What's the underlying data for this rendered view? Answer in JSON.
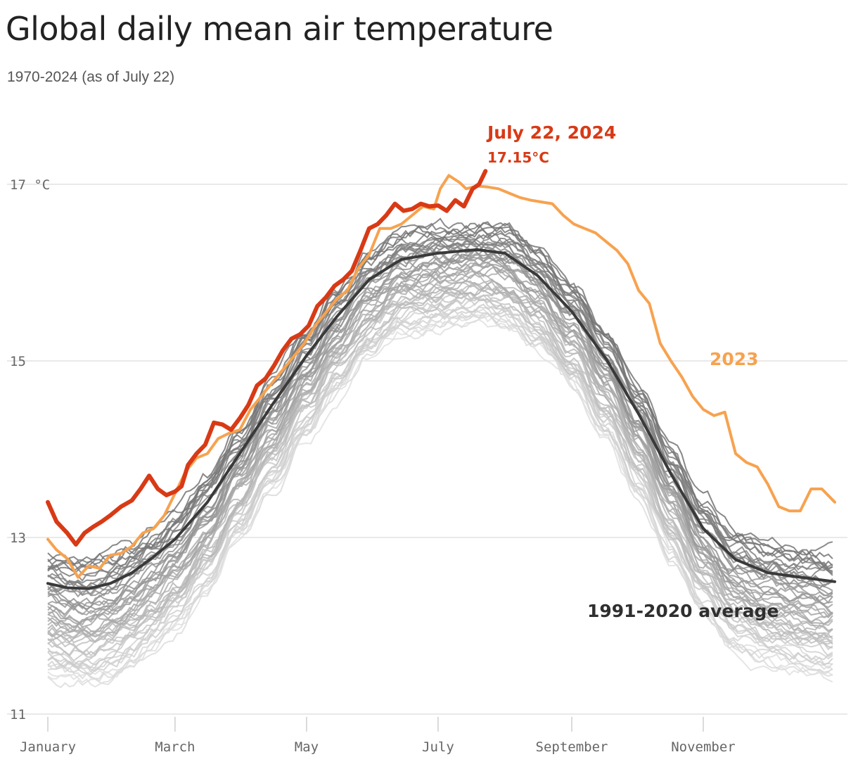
{
  "title": "Global daily mean air temperature",
  "subtitle": "1970-2024 (as of July 22)",
  "chart_data": {
    "type": "line",
    "title": "Global daily mean air temperature",
    "subtitle": "1970-2024 (as of July 22)",
    "y_unit": "°C",
    "ylim": [
      11,
      17.3
    ],
    "y_ticks": [
      {
        "value": 11,
        "label": "11"
      },
      {
        "value": 13,
        "label": "13"
      },
      {
        "value": 15,
        "label": "15"
      },
      {
        "value": 17,
        "label": "17 °C"
      }
    ],
    "x_ticks": [
      {
        "day": 1,
        "label": "January"
      },
      {
        "day": 60,
        "label": "March"
      },
      {
        "day": 121,
        "label": "May"
      },
      {
        "day": 182,
        "label": "July"
      },
      {
        "day": 244,
        "label": "September"
      },
      {
        "day": 305,
        "label": "November"
      }
    ],
    "xlim": [
      1,
      366
    ],
    "grid": "horizontal",
    "colors": {
      "y2024": "#d83a16",
      "y2023": "#f7a24f",
      "average": "#3a3a3a",
      "history": "#8a8a8a"
    },
    "series": [
      {
        "name": "1991-2020 average",
        "points": [
          [
            1,
            12.48
          ],
          [
            10,
            12.43
          ],
          [
            20,
            12.42
          ],
          [
            30,
            12.48
          ],
          [
            40,
            12.6
          ],
          [
            50,
            12.78
          ],
          [
            60,
            12.98
          ],
          [
            75,
            13.4
          ],
          [
            90,
            13.95
          ],
          [
            105,
            14.5
          ],
          [
            121,
            15.06
          ],
          [
            135,
            15.5
          ],
          [
            150,
            15.92
          ],
          [
            165,
            16.15
          ],
          [
            182,
            16.22
          ],
          [
            200,
            16.26
          ],
          [
            213,
            16.22
          ],
          [
            228,
            15.97
          ],
          [
            244,
            15.56
          ],
          [
            260,
            15.02
          ],
          [
            275,
            14.4
          ],
          [
            290,
            13.72
          ],
          [
            305,
            13.1
          ],
          [
            320,
            12.75
          ],
          [
            335,
            12.6
          ],
          [
            350,
            12.55
          ],
          [
            366,
            12.5
          ]
        ]
      },
      {
        "name": "2023",
        "points": [
          [
            1,
            12.98
          ],
          [
            5,
            12.86
          ],
          [
            10,
            12.76
          ],
          [
            15,
            12.55
          ],
          [
            20,
            12.68
          ],
          [
            25,
            12.65
          ],
          [
            30,
            12.8
          ],
          [
            35,
            12.82
          ],
          [
            40,
            12.9
          ],
          [
            45,
            13.05
          ],
          [
            50,
            13.1
          ],
          [
            55,
            13.25
          ],
          [
            60,
            13.5
          ],
          [
            65,
            13.75
          ],
          [
            70,
            13.9
          ],
          [
            75,
            13.95
          ],
          [
            80,
            14.12
          ],
          [
            85,
            14.18
          ],
          [
            90,
            14.22
          ],
          [
            95,
            14.45
          ],
          [
            100,
            14.6
          ],
          [
            105,
            14.75
          ],
          [
            110,
            14.9
          ],
          [
            115,
            15.05
          ],
          [
            120,
            15.2
          ],
          [
            125,
            15.4
          ],
          [
            130,
            15.55
          ],
          [
            135,
            15.7
          ],
          [
            140,
            15.8
          ],
          [
            145,
            16.05
          ],
          [
            150,
            16.2
          ],
          [
            155,
            16.5
          ],
          [
            160,
            16.5
          ],
          [
            165,
            16.55
          ],
          [
            170,
            16.65
          ],
          [
            175,
            16.75
          ],
          [
            180,
            16.72
          ],
          [
            183,
            16.95
          ],
          [
            187,
            17.1
          ],
          [
            192,
            17.02
          ],
          [
            195,
            16.95
          ],
          [
            200,
            16.98
          ],
          [
            205,
            16.97
          ],
          [
            210,
            16.95
          ],
          [
            215,
            16.9
          ],
          [
            220,
            16.85
          ],
          [
            225,
            16.82
          ],
          [
            230,
            16.8
          ],
          [
            235,
            16.78
          ],
          [
            240,
            16.65
          ],
          [
            245,
            16.55
          ],
          [
            250,
            16.5
          ],
          [
            255,
            16.45
          ],
          [
            260,
            16.35
          ],
          [
            265,
            16.25
          ],
          [
            270,
            16.1
          ],
          [
            275,
            15.8
          ],
          [
            280,
            15.65
          ],
          [
            285,
            15.2
          ],
          [
            290,
            15.0
          ],
          [
            295,
            14.82
          ],
          [
            300,
            14.6
          ],
          [
            305,
            14.45
          ],
          [
            310,
            14.38
          ],
          [
            315,
            14.42
          ],
          [
            320,
            13.95
          ],
          [
            325,
            13.85
          ],
          [
            330,
            13.8
          ],
          [
            335,
            13.6
          ],
          [
            340,
            13.35
          ],
          [
            345,
            13.3
          ],
          [
            350,
            13.3
          ],
          [
            355,
            13.55
          ],
          [
            360,
            13.55
          ],
          [
            366,
            13.4
          ]
        ]
      },
      {
        "name": "2024",
        "points": [
          [
            1,
            13.4
          ],
          [
            5,
            13.18
          ],
          [
            10,
            13.05
          ],
          [
            14,
            12.92
          ],
          [
            18,
            13.05
          ],
          [
            22,
            13.12
          ],
          [
            26,
            13.18
          ],
          [
            30,
            13.25
          ],
          [
            35,
            13.35
          ],
          [
            40,
            13.42
          ],
          [
            44,
            13.55
          ],
          [
            48,
            13.7
          ],
          [
            52,
            13.55
          ],
          [
            56,
            13.48
          ],
          [
            60,
            13.52
          ],
          [
            63,
            13.58
          ],
          [
            66,
            13.82
          ],
          [
            70,
            13.95
          ],
          [
            74,
            14.05
          ],
          [
            78,
            14.3
          ],
          [
            82,
            14.28
          ],
          [
            86,
            14.22
          ],
          [
            90,
            14.35
          ],
          [
            94,
            14.5
          ],
          [
            98,
            14.72
          ],
          [
            102,
            14.8
          ],
          [
            106,
            14.95
          ],
          [
            110,
            15.12
          ],
          [
            114,
            15.25
          ],
          [
            118,
            15.3
          ],
          [
            122,
            15.4
          ],
          [
            126,
            15.62
          ],
          [
            130,
            15.72
          ],
          [
            134,
            15.85
          ],
          [
            138,
            15.92
          ],
          [
            142,
            16.02
          ],
          [
            146,
            16.25
          ],
          [
            150,
            16.5
          ],
          [
            154,
            16.55
          ],
          [
            158,
            16.65
          ],
          [
            162,
            16.78
          ],
          [
            166,
            16.7
          ],
          [
            170,
            16.72
          ],
          [
            174,
            16.78
          ],
          [
            178,
            16.75
          ],
          [
            182,
            16.76
          ],
          [
            186,
            16.7
          ],
          [
            190,
            16.82
          ],
          [
            194,
            16.75
          ],
          [
            198,
            16.95
          ],
          [
            201,
            17.0
          ],
          [
            204,
            17.15
          ]
        ]
      }
    ],
    "annotations": [
      {
        "text": "July 22, 2024",
        "color": "#d83a16"
      },
      {
        "text": "17.15°C",
        "color": "#d83a16"
      },
      {
        "text": "2023",
        "color": "#f7a24f"
      },
      {
        "text": "1991-2020 average",
        "color": "#2f2f2f"
      }
    ],
    "history_years": 53
  }
}
